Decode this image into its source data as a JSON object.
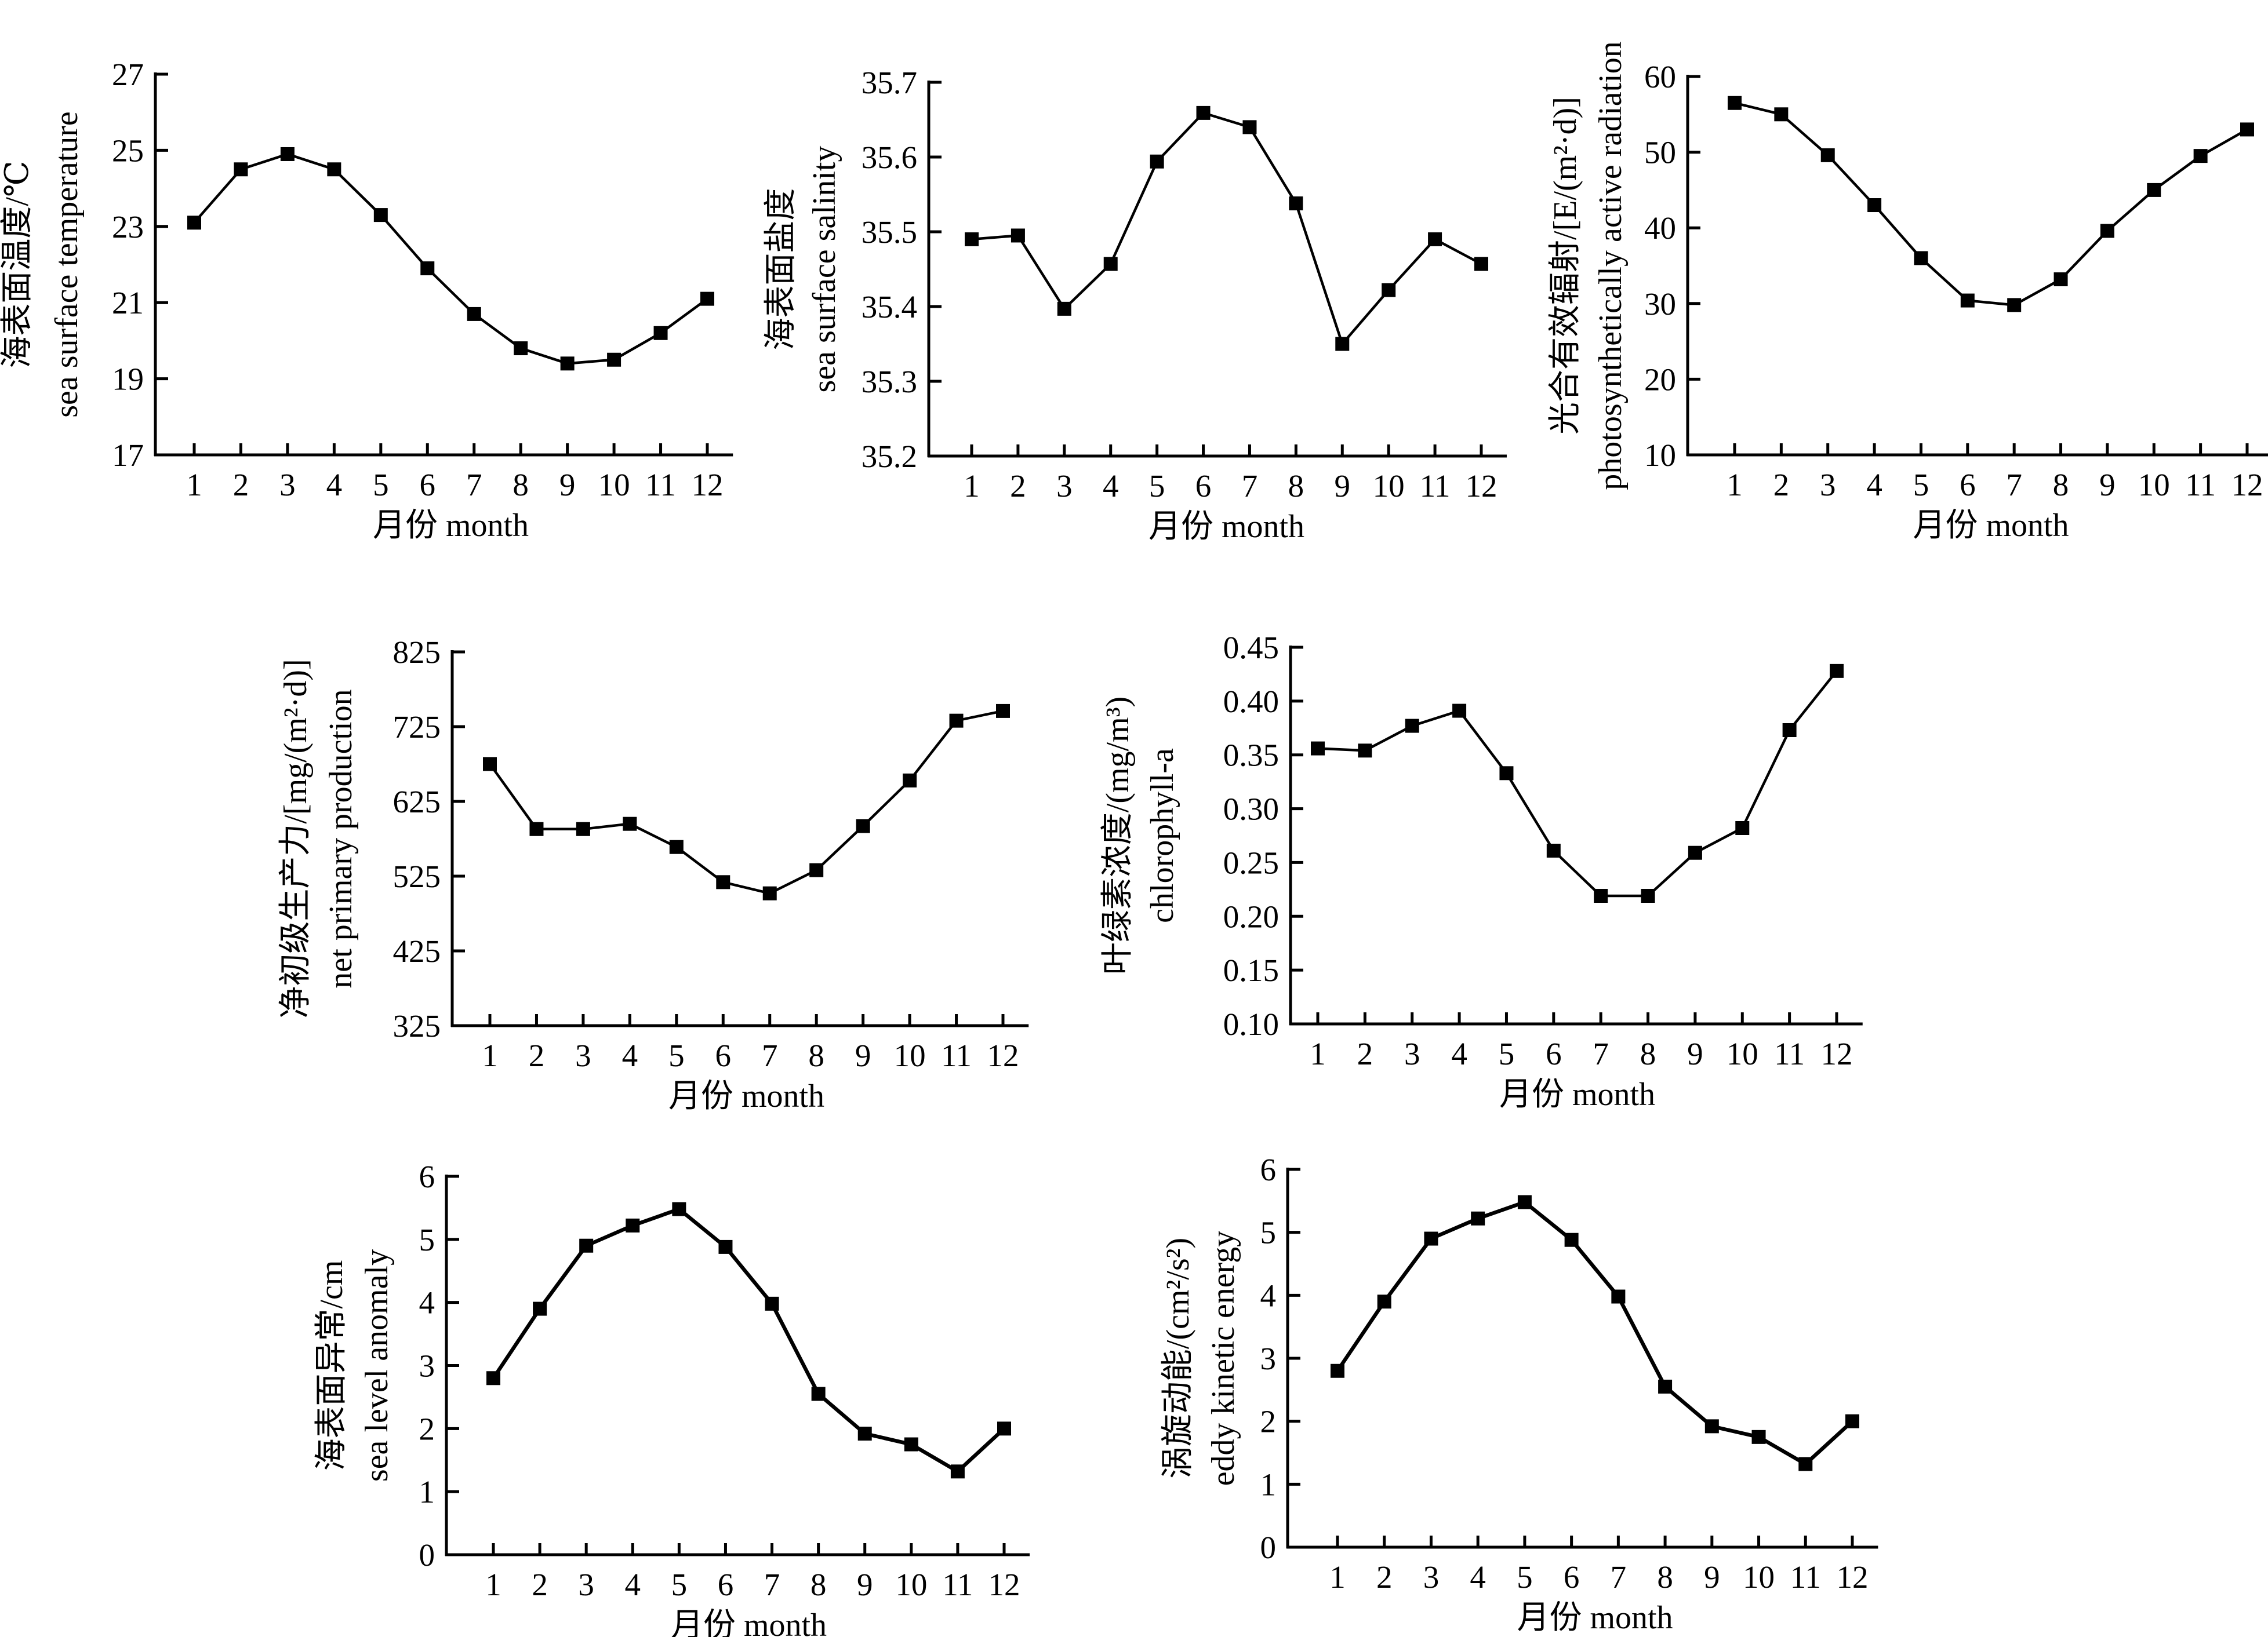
{
  "chart_data": [
    {
      "type": "line",
      "categories": [
        "1",
        "2",
        "3",
        "4",
        "5",
        "6",
        "7",
        "8",
        "9",
        "10",
        "11",
        "12"
      ],
      "series": [
        {
          "values": [
            23.1,
            24.5,
            24.9,
            24.5,
            23.3,
            21.9,
            20.7,
            19.8,
            19.4,
            19.5,
            20.2,
            21.1
          ]
        }
      ],
      "xlabel": "月份 month",
      "ylabel": [
        "海表面温度/℃",
        "sea surface temperature"
      ],
      "ylim": [
        17,
        27
      ],
      "yticks": [
        "17",
        "19",
        "21",
        "23",
        "25",
        "27"
      ]
    },
    {
      "type": "line",
      "categories": [
        "1",
        "2",
        "3",
        "4",
        "5",
        "6",
        "7",
        "8",
        "9",
        "10",
        "11",
        "12"
      ],
      "series": [
        {
          "values": [
            35.49,
            35.495,
            35.397,
            35.457,
            35.594,
            35.659,
            35.64,
            35.538,
            35.35,
            35.422,
            35.49,
            35.457
          ]
        }
      ],
      "xlabel": "月份 month",
      "ylabel": [
        "海表面盐度",
        "sea surface salinity"
      ],
      "ylim": [
        35.2,
        35.7
      ],
      "yticks": [
        "35.2",
        "35.3",
        "35.4",
        "35.5",
        "35.6",
        "35.7"
      ]
    },
    {
      "type": "line",
      "categories": [
        "1",
        "2",
        "3",
        "4",
        "5",
        "6",
        "7",
        "8",
        "9",
        "10",
        "11",
        "12"
      ],
      "series": [
        {
          "values": [
            56.5,
            55.0,
            49.6,
            43.0,
            36.0,
            30.4,
            29.8,
            33.2,
            39.6,
            45.0,
            49.5,
            53.0
          ]
        }
      ],
      "xlabel": "月份 month",
      "ylabel": [
        "光合有效辐射/[E/(m²·d)]",
        "photosynthetically active radiation"
      ],
      "ylim": [
        10,
        60
      ],
      "yticks": [
        "10",
        "20",
        "30",
        "40",
        "50",
        "60"
      ]
    },
    {
      "type": "line",
      "categories": [
        "1",
        "2",
        "3",
        "4",
        "5",
        "6",
        "7",
        "8",
        "9",
        "10",
        "11",
        "12"
      ],
      "series": [
        {
          "values": [
            675,
            588,
            588,
            595,
            564,
            517,
            502,
            533,
            592,
            653,
            733,
            746
          ]
        }
      ],
      "xlabel": "月份 month",
      "ylabel": [
        "净初级生产力/[mg/(m²·d)]",
        "net primary production"
      ],
      "ylim": [
        325,
        825
      ],
      "yticks": [
        "325",
        "425",
        "525",
        "625",
        "725",
        "825"
      ]
    },
    {
      "type": "line",
      "categories": [
        "1",
        "2",
        "3",
        "4",
        "5",
        "6",
        "7",
        "8",
        "9",
        "10",
        "11",
        "12"
      ],
      "series": [
        {
          "values": [
            0.356,
            0.354,
            0.377,
            0.391,
            0.333,
            0.261,
            0.219,
            0.219,
            0.259,
            0.282,
            0.373,
            0.428
          ]
        }
      ],
      "xlabel": "月份 month",
      "ylabel": [
        "叶绿素浓度/(mg/m³)",
        "chlorophyll-a"
      ],
      "ylim": [
        0.1,
        0.45
      ],
      "yticks": [
        "0.10",
        "0.15",
        "0.20",
        "0.25",
        "0.30",
        "0.35",
        "0.40",
        "0.45"
      ]
    },
    {
      "type": "line",
      "categories": [
        "1",
        "2",
        "3",
        "4",
        "5",
        "6",
        "7",
        "8",
        "9",
        "10",
        "11",
        "12"
      ],
      "series": [
        {
          "values": [
            2.8,
            3.9,
            4.9,
            5.22,
            5.48,
            4.88,
            3.98,
            2.55,
            1.92,
            1.75,
            1.32,
            2.0
          ]
        }
      ],
      "xlabel": "月份 month",
      "ylabel": [
        "海表面异常/cm",
        "sea level anomaly"
      ],
      "ylim": [
        0,
        6
      ],
      "yticks": [
        "0",
        "1",
        "2",
        "3",
        "4",
        "5",
        "6"
      ]
    },
    {
      "type": "line",
      "categories": [
        "1",
        "2",
        "3",
        "4",
        "5",
        "6",
        "7",
        "8",
        "9",
        "10",
        "11",
        "12"
      ],
      "series": [
        {
          "values": [
            2.8,
            3.9,
            4.9,
            5.22,
            5.48,
            4.88,
            3.98,
            2.55,
            1.92,
            1.75,
            1.32,
            2.0
          ]
        }
      ],
      "xlabel": "月份 month",
      "ylabel": [
        "涡旋动能/(cm²/s²)",
        "eddy kinetic energy"
      ],
      "ylim": [
        0,
        6
      ],
      "yticks": [
        "0",
        "1",
        "2",
        "3",
        "4",
        "5",
        "6"
      ]
    }
  ]
}
